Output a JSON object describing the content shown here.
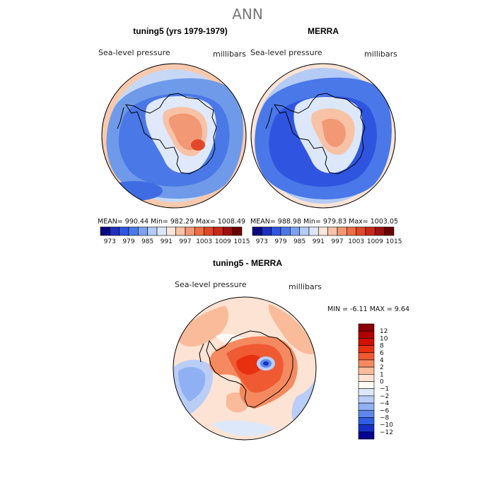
{
  "main_title": "ANN",
  "panels": {
    "model": {
      "title": "tuning5 (yrs 1979-1979)",
      "variable_label": "Sea-level pressure",
      "units_label": "millibars",
      "stats": "MEAN= 990.44   Min= 982.29   Max= 1008.49"
    },
    "obs": {
      "title": "MERRA",
      "variable_label": "Sea-level pressure",
      "units_label": "millibars",
      "stats": "MEAN= 988.98   Min= 979.83   Max= 1003.05"
    },
    "diff": {
      "title": "tuning5 - MERRA",
      "variable_label": "Sea-level pressure",
      "units_label": "millibars",
      "stats": "MIN =   -6.11  MAX =    9.64"
    }
  },
  "chart_data": [
    {
      "type": "heatmap",
      "panel": "model",
      "title": "tuning5 (yrs 1979-1979)",
      "variable": "Sea-level pressure",
      "units": "millibars",
      "projection": "south polar stereographic",
      "mean": 990.44,
      "min": 982.29,
      "max": 1008.49,
      "colorbar_levels": [
        973,
        979,
        985,
        991,
        997,
        1003,
        1009,
        1015
      ],
      "colorbar_colors": [
        "#0a0a80",
        "#1f2fc0",
        "#2f55e0",
        "#4a78e8",
        "#7da2f0",
        "#b3cbf5",
        "#dce8fa",
        "#fbe5dc",
        "#f7c2a6",
        "#f39874",
        "#ef6e45",
        "#e2472a",
        "#c9281a",
        "#9c1010",
        "#6b0000"
      ]
    },
    {
      "type": "heatmap",
      "panel": "obs",
      "title": "MERRA",
      "variable": "Sea-level pressure",
      "units": "millibars",
      "projection": "south polar stereographic",
      "mean": 988.98,
      "min": 979.83,
      "max": 1003.05,
      "colorbar_levels": [
        973,
        979,
        985,
        991,
        997,
        1003,
        1009,
        1015
      ],
      "colorbar_colors": [
        "#0a0a80",
        "#1f2fc0",
        "#2f55e0",
        "#4a78e8",
        "#7da2f0",
        "#b3cbf5",
        "#dce8fa",
        "#fbe5dc",
        "#f7c2a6",
        "#f39874",
        "#ef6e45",
        "#e2472a",
        "#c9281a",
        "#9c1010",
        "#6b0000"
      ]
    },
    {
      "type": "heatmap",
      "panel": "diff",
      "title": "tuning5 - MERRA",
      "variable": "Sea-level pressure",
      "units": "millibars",
      "projection": "south polar stereographic",
      "min": -6.11,
      "max": 9.64,
      "colorbar_levels": [
        "12",
        "10",
        "8",
        "6",
        "4",
        "2",
        "1",
        "0",
        "−1",
        "−2",
        "−4",
        "−6",
        "−8",
        "−10",
        "−12"
      ],
      "colorbar_colors": [
        "#8b0000",
        "#b00000",
        "#d01000",
        "#e83010",
        "#f05a32",
        "#f58a60",
        "#f9bb9a",
        "#fde3d4",
        "#fffaf5",
        "#dde8fb",
        "#b9cdf7",
        "#8fb0f2",
        "#5e87ea",
        "#2f5ee2",
        "#1530c8",
        "#050090"
      ]
    }
  ]
}
